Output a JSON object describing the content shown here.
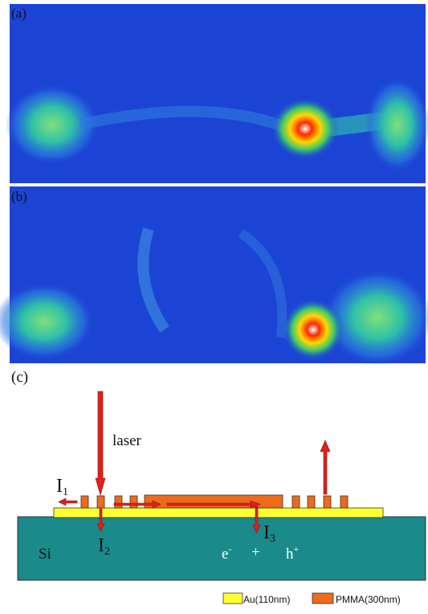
{
  "panels": {
    "a": "(a)",
    "b": "(b)",
    "c": "(c)"
  },
  "diagram": {
    "laser": "laser",
    "i1": {
      "main": "I",
      "sub": "1"
    },
    "i2": {
      "main": "I",
      "sub": "2"
    },
    "i3": {
      "main": "I",
      "sub": "3"
    },
    "substrate": "Si",
    "electron": {
      "main": "e",
      "sup": "-"
    },
    "plus": "+",
    "hole": {
      "main": "h",
      "sup": "+"
    }
  },
  "legend": [
    "Au(110nm)",
    "PMMA(300nm)"
  ]
}
